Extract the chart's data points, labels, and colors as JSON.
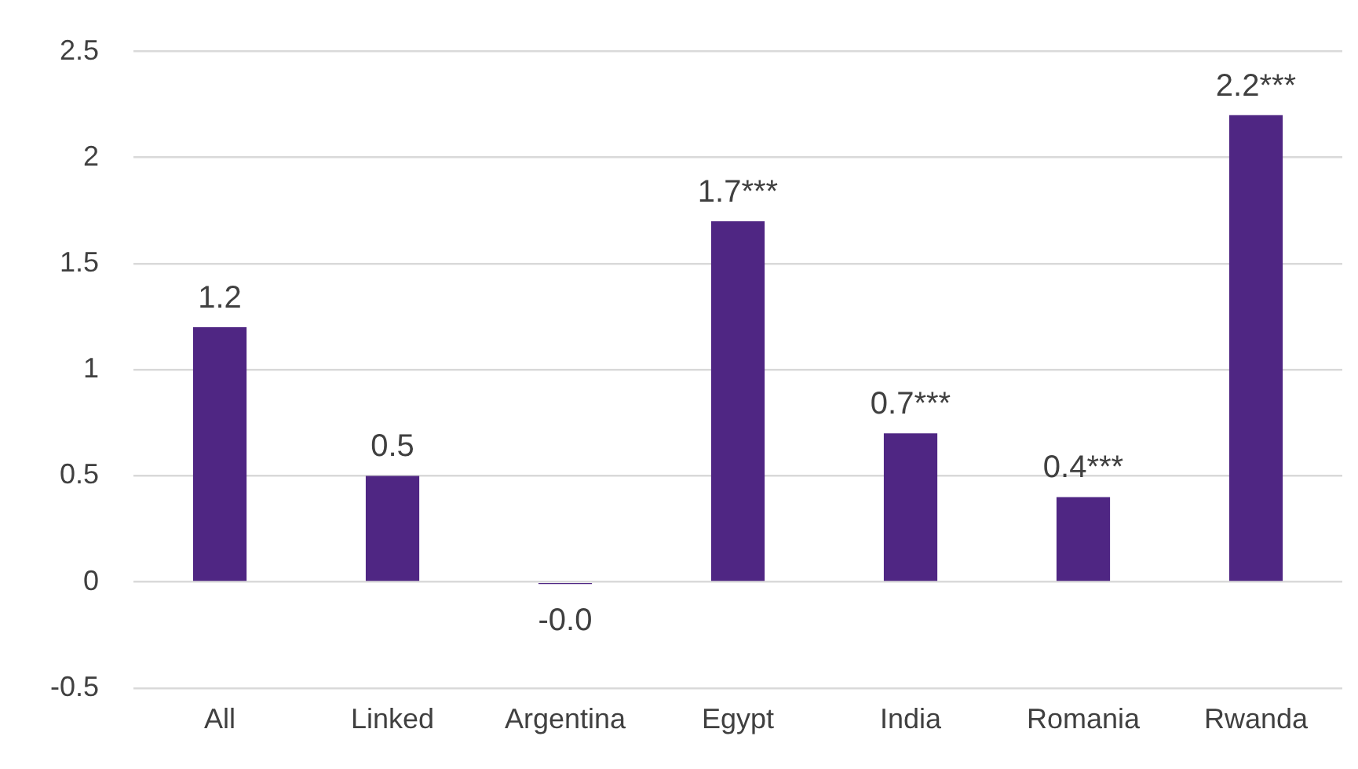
{
  "chart_data": {
    "type": "bar",
    "categories": [
      "All",
      "Linked",
      "Argentina",
      "Egypt",
      "India",
      "Romania",
      "Rwanda"
    ],
    "values": [
      1.2,
      0.5,
      -0.01,
      1.7,
      0.7,
      0.4,
      2.2
    ],
    "value_labels": [
      "1.2",
      "0.5",
      "-0.0",
      "1.7***",
      "0.7***",
      "0.4***",
      "2.2***"
    ],
    "color": "#4f2683",
    "ylim": [
      -0.5,
      2.5
    ],
    "yticks": [
      -0.5,
      0,
      0.5,
      1,
      1.5,
      2,
      2.5
    ],
    "grid": "y",
    "legend": false
  }
}
